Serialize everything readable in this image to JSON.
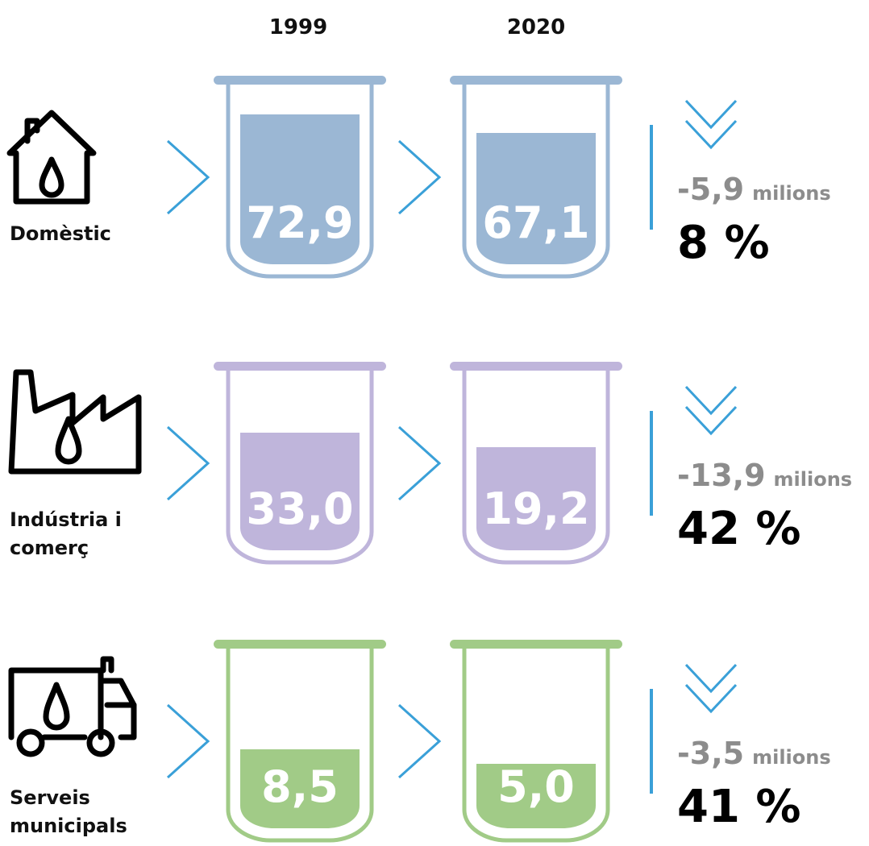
{
  "header": {
    "years": [
      "1999",
      "2020"
    ]
  },
  "rows": [
    {
      "label": [
        "Domèstic"
      ],
      "values": [
        "72,9",
        "67,1"
      ],
      "change": "-5,9",
      "unit": "milions",
      "percent": "8 %"
    },
    {
      "label": [
        "Indústria i",
        "comerç"
      ],
      "values": [
        "33,0",
        "19,2"
      ],
      "change": "-13,9",
      "unit": "milions",
      "percent": "42 %"
    },
    {
      "label": [
        "Serveis",
        "municipals"
      ],
      "values": [
        "8,5",
        "5,0"
      ],
      "change": "-3,5",
      "unit": "milions",
      "percent": "41 %"
    }
  ]
}
